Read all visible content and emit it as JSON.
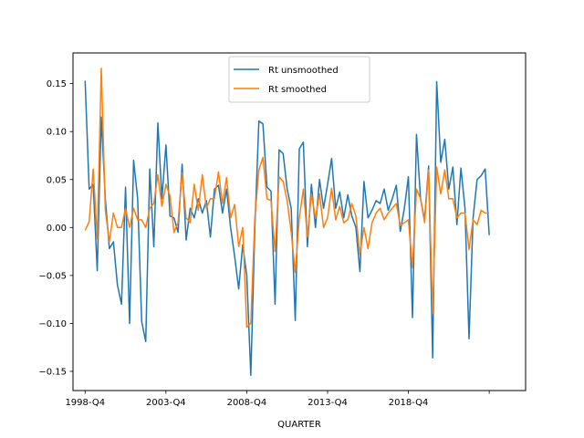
{
  "chart_data": {
    "type": "line",
    "xlabel": "QUARTER",
    "ylabel": "",
    "title": "",
    "legend_position": "top-center",
    "grid": false,
    "ylim": [
      -0.17,
      0.182
    ],
    "xlim": [
      -3,
      109
    ],
    "x_tick_labels": [
      {
        "index": 0,
        "label": "1998-Q4"
      },
      {
        "index": 20,
        "label": "2003-Q4"
      },
      {
        "index": 40,
        "label": "2008-Q4"
      },
      {
        "index": 60,
        "label": "2013-Q4"
      },
      {
        "index": 80,
        "label": "2018-Q4"
      },
      {
        "index": 100,
        "label": ""
      }
    ],
    "y_ticks": [
      -0.15,
      -0.1,
      -0.05,
      0.0,
      0.05,
      0.1,
      0.15
    ],
    "y_tick_labels": [
      "−0.15",
      "−0.10",
      "−0.05",
      "0.00",
      "0.05",
      "0.10",
      "0.15"
    ],
    "series": [
      {
        "name": "Rt unsmoothed",
        "color": "#1f77b4",
        "values": [
          0.153,
          0.04,
          0.045,
          -0.045,
          0.115,
          0.03,
          -0.022,
          -0.015,
          -0.06,
          -0.08,
          0.042,
          -0.1,
          0.07,
          0.03,
          -0.098,
          -0.119,
          0.061,
          -0.02,
          0.109,
          0.03,
          0.086,
          0.012,
          0.01,
          -0.005,
          0.066,
          -0.013,
          0.02,
          0.01,
          0.03,
          0.015,
          0.028,
          -0.01,
          0.04,
          0.044,
          0.015,
          0.04,
          0.0,
          -0.03,
          -0.064,
          -0.018,
          -0.05,
          -0.154,
          0.0,
          0.111,
          0.108,
          0.042,
          0.038,
          -0.08,
          0.081,
          0.077,
          0.04,
          0.02,
          -0.097,
          0.082,
          0.089,
          -0.02,
          0.045,
          0.0,
          0.05,
          0.02,
          0.045,
          0.072,
          0.02,
          0.037,
          0.01,
          0.034,
          0.012,
          0.0,
          -0.046,
          0.048,
          0.01,
          0.018,
          0.028,
          0.025,
          0.04,
          0.018,
          0.03,
          0.044,
          -0.004,
          0.02,
          0.053,
          -0.094,
          0.097,
          0.03,
          0.008,
          0.064,
          -0.136,
          0.152,
          0.068,
          0.092,
          0.04,
          0.063,
          0.003,
          0.062,
          0.02,
          -0.116,
          0.01,
          0.05,
          0.054,
          0.061,
          -0.008
        ]
      },
      {
        "name": "Rt smoothed",
        "color": "#ff7f0e",
        "values": [
          -0.003,
          0.006,
          0.061,
          -0.012,
          0.166,
          0.018,
          -0.015,
          0.015,
          0.0,
          0.0,
          0.02,
          0.0,
          0.02,
          0.008,
          0.008,
          0.0,
          0.02,
          0.025,
          0.055,
          0.022,
          0.045,
          0.033,
          -0.005,
          0.005,
          0.057,
          0.01,
          0.005,
          0.045,
          0.018,
          0.055,
          0.02,
          0.03,
          0.03,
          0.058,
          0.025,
          0.052,
          0.01,
          0.024,
          -0.02,
          0.0,
          -0.104,
          -0.1,
          0.01,
          0.06,
          0.073,
          0.03,
          0.028,
          -0.025,
          0.053,
          0.048,
          0.028,
          -0.005,
          -0.047,
          0.01,
          0.04,
          -0.01,
          0.035,
          0.01,
          0.035,
          0.0,
          0.01,
          0.041,
          0.008,
          0.022,
          0.005,
          0.008,
          0.025,
          0.012,
          -0.028,
          0.0,
          -0.022,
          0.005,
          0.015,
          0.02,
          0.008,
          0.015,
          0.02,
          0.025,
          0.002,
          0.005,
          0.008,
          -0.042,
          0.04,
          0.03,
          0.005,
          0.06,
          -0.09,
          0.063,
          0.035,
          0.06,
          0.03,
          0.03,
          0.01,
          0.015,
          0.015,
          -0.023,
          0.008,
          0.003,
          0.018,
          0.015,
          0.015
        ]
      }
    ]
  }
}
